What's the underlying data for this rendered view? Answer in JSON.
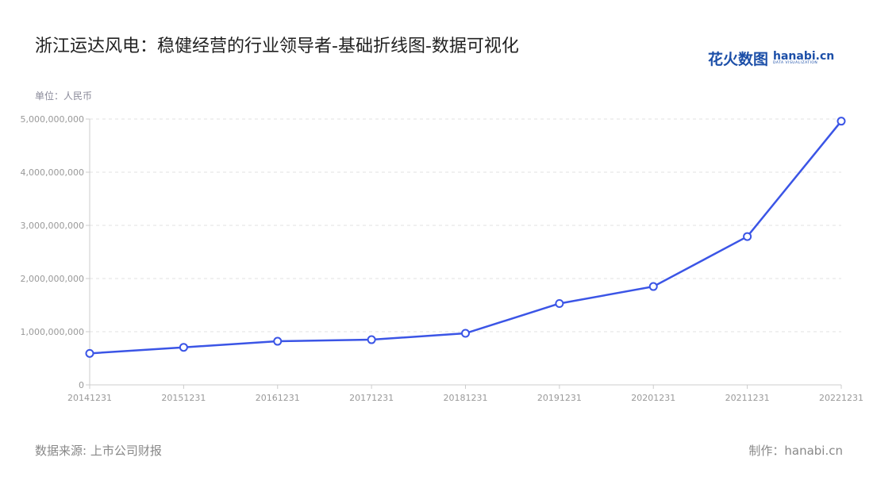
{
  "title": "浙江运达风电：稳健经营的行业领导者-基础折线图-数据可视化",
  "logo": {
    "cn": "花火数图",
    "en": "hanabi.cn",
    "sub": "DATA VISUALIZATION"
  },
  "footer": {
    "source": "数据来源: 上市公司财报",
    "maker": "制作：hanabi.cn"
  },
  "colors": {
    "line": "#3b55e6",
    "grid": "#e0e0e0",
    "axis": "#cccccc"
  },
  "chart_data": {
    "type": "line",
    "title": "浙江运达风电：稳健经营的行业领导者-基础折线图-数据可视化",
    "ylabel": "单位：人民币",
    "categories": [
      "20141231",
      "20151231",
      "20161231",
      "20171231",
      "20181231",
      "20191231",
      "20201231",
      "20211231",
      "20221231"
    ],
    "values": [
      592000000,
      706000000,
      820000000,
      850000000,
      970000000,
      1530000000,
      1850000000,
      2790000000,
      4960000000
    ],
    "ylim": [
      0,
      5000000000
    ],
    "yticks": [
      "0",
      "1,000,000,000",
      "2,000,000,000",
      "3,000,000,000",
      "4,000,000,000",
      "5,000,000,000"
    ],
    "grid": true
  }
}
